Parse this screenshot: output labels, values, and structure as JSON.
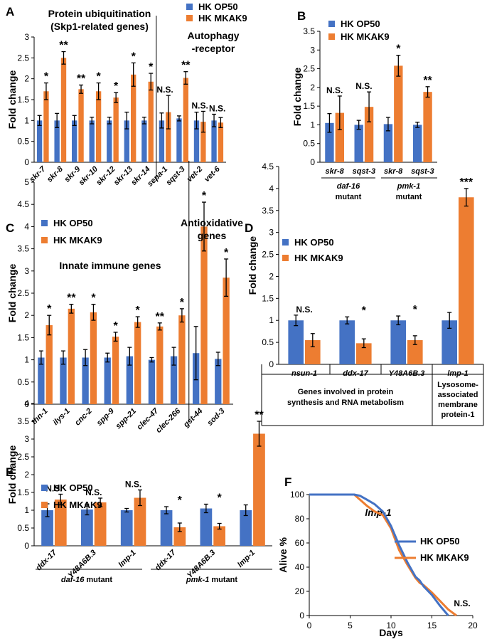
{
  "chart_data": [
    {
      "panel": "A",
      "type": "bar",
      "ylabel": "Fold change",
      "ylim": [
        0,
        3
      ],
      "yticks": [
        0,
        0.5,
        1,
        1.5,
        2,
        2.5,
        3
      ],
      "categories": [
        "skr-7",
        "skr-8",
        "skr-9",
        "skr-10",
        "skr-12",
        "skr-13",
        "skr-14",
        "sepa-1",
        "sqst-3",
        "vet-2",
        "vet-6"
      ],
      "series": [
        {
          "name": "HK OP50",
          "color": "#4472C4",
          "values": [
            1.0,
            1.0,
            1.0,
            1.0,
            1.0,
            1.0,
            1.0,
            1.0,
            1.05,
            1.0,
            1.0
          ],
          "errors": [
            0.12,
            0.17,
            0.12,
            0.08,
            0.08,
            0.2,
            0.08,
            0.18,
            0.06,
            0.2,
            0.15
          ]
        },
        {
          "name": "HK MKAK9",
          "color": "#ED7D31",
          "values": [
            1.7,
            2.5,
            1.75,
            1.7,
            1.55,
            2.1,
            1.93,
            1.2,
            2.02,
            0.97,
            0.95
          ],
          "errors": [
            0.2,
            0.15,
            0.1,
            0.2,
            0.12,
            0.28,
            0.2,
            0.4,
            0.15,
            0.25,
            0.12
          ]
        }
      ],
      "significance": [
        "*",
        "**",
        "**",
        "*",
        "*",
        "*",
        "*",
        "N.S.",
        "**",
        "N.S.",
        "N.S."
      ],
      "annotations": {
        "title_line1": "Protein ubiquitination",
        "title_line2": "(Skp1-related genes)",
        "right_line1": "Autophagy",
        "right_line2": "-receptor"
      }
    },
    {
      "panel": "B",
      "type": "bar",
      "ylabel": "Fold change",
      "ylim": [
        0,
        3.5
      ],
      "yticks": [
        0,
        0.5,
        1,
        1.5,
        2,
        2.5,
        3,
        3.5
      ],
      "categories": [
        "skr-8",
        "sqst-3",
        "skr-8",
        "sqst-3"
      ],
      "series": [
        {
          "name": "HK OP50",
          "color": "#4472C4",
          "values": [
            1.05,
            1.0,
            1.02,
            1.0
          ],
          "errors": [
            0.25,
            0.12,
            0.18,
            0.07
          ]
        },
        {
          "name": "HK MKAK9",
          "color": "#ED7D31",
          "values": [
            1.32,
            1.48,
            2.58,
            1.88
          ],
          "errors": [
            0.45,
            0.4,
            0.28,
            0.14
          ]
        }
      ],
      "significance": [
        "N.S.",
        "N.S.",
        "*",
        "**"
      ],
      "groups": [
        {
          "line1": "daf-16",
          "line2": "mutant"
        },
        {
          "line1": "pmk-1",
          "line2": "mutant"
        }
      ]
    },
    {
      "panel": "C",
      "type": "bar",
      "ylabel": "Fold change",
      "ylim": [
        0,
        5
      ],
      "yticks": [
        0,
        0.5,
        1,
        1.5,
        2,
        2.5,
        3,
        3.5,
        4,
        4.5,
        5
      ],
      "categories": [
        "thn-1",
        "ilys-1",
        "cnc-2",
        "spp-9",
        "spp-21",
        "clec-47",
        "clec-266",
        "gst-44",
        "sod-3"
      ],
      "series": [
        {
          "name": "HK OP50",
          "color": "#4472C4",
          "values": [
            1.05,
            1.05,
            1.05,
            1.05,
            1.08,
            1.0,
            1.08,
            1.15,
            1.02
          ],
          "errors": [
            0.15,
            0.15,
            0.18,
            0.1,
            0.2,
            0.05,
            0.2,
            0.6,
            0.15
          ]
        },
        {
          "name": "HK MKAK9",
          "color": "#ED7D31",
          "values": [
            1.78,
            2.15,
            2.07,
            1.52,
            1.85,
            1.75,
            2.0,
            4.0,
            2.85
          ],
          "errors": [
            0.22,
            0.1,
            0.18,
            0.1,
            0.12,
            0.08,
            0.15,
            0.55,
            0.42
          ]
        }
      ],
      "significance": [
        "*",
        "**",
        "*",
        "*",
        "*",
        "**",
        "*",
        "*",
        "*"
      ],
      "annotations": {
        "innate": "Innate immune genes",
        "antiox_line1": "Antioxidative",
        "antiox_line2": "genes"
      }
    },
    {
      "panel": "D",
      "type": "bar",
      "ylabel": "Fold change",
      "ylim": [
        0,
        4.5
      ],
      "yticks": [
        0,
        0.5,
        1,
        1.5,
        2,
        2.5,
        3,
        3.5,
        4,
        4.5
      ],
      "categories": [
        "nsun-1",
        "ddx-17",
        "Y48A6B.3",
        "lmp-1"
      ],
      "series": [
        {
          "name": "HK OP50",
          "color": "#4472C4",
          "values": [
            1.0,
            1.0,
            1.0,
            1.0
          ],
          "errors": [
            0.12,
            0.08,
            0.1,
            0.18
          ]
        },
        {
          "name": "HK MKAK9",
          "color": "#ED7D31",
          "values": [
            0.55,
            0.48,
            0.55,
            3.8
          ],
          "errors": [
            0.15,
            0.1,
            0.1,
            0.2
          ]
        }
      ],
      "significance": [
        "N.S.",
        "*",
        "*",
        "***"
      ],
      "groups": [
        {
          "line1": "Genes involved in protein",
          "line2": "synthesis and RNA metabolism"
        },
        {
          "line1": "Lysosome-",
          "line2": "associated",
          "line3": "membrane",
          "line4": "protein-1"
        }
      ]
    },
    {
      "panel": "E",
      "type": "bar",
      "ylabel": "Fold change",
      "ylim": [
        0,
        4
      ],
      "yticks": [
        0,
        0.5,
        1,
        1.5,
        2,
        2.5,
        3,
        3.5,
        4
      ],
      "categories": [
        "ddx-17",
        "Y48A6B.3",
        "lmp-1",
        "ddx-17",
        "Y48A6B.3",
        "lmp-1"
      ],
      "series": [
        {
          "name": "HK OP50",
          "color": "#4472C4",
          "values": [
            1.0,
            1.02,
            1.0,
            1.0,
            1.05,
            1.0
          ],
          "errors": [
            0.18,
            0.15,
            0.05,
            0.1,
            0.12,
            0.15
          ]
        },
        {
          "name": "HK MKAK9",
          "color": "#ED7D31",
          "values": [
            1.3,
            1.22,
            1.35,
            0.52,
            0.55,
            3.15
          ],
          "errors": [
            0.15,
            0.12,
            0.22,
            0.12,
            0.08,
            0.35
          ]
        }
      ],
      "significance": [
        "N.S.",
        "N.S.",
        "N.S.",
        "*",
        "*",
        "**"
      ],
      "groups": [
        {
          "gene": "daf-16",
          "suffix": " mutant"
        },
        {
          "gene": "pmk-1",
          "suffix": " mutant"
        }
      ]
    },
    {
      "panel": "F",
      "type": "line",
      "title": "lmp-1",
      "xlabel": "Days",
      "ylabel": "Alive %",
      "xlim": [
        0,
        20
      ],
      "ylim": [
        0,
        100
      ],
      "xticks": [
        0,
        5,
        10,
        15,
        20
      ],
      "yticks": [
        0,
        20,
        40,
        60,
        80,
        100
      ],
      "series": [
        {
          "name": "HK OP50",
          "color": "#4472C4",
          "x": [
            0,
            5.5,
            6.2,
            7,
            8,
            9,
            10,
            11,
            12,
            13,
            13.5,
            14,
            15,
            16,
            17
          ],
          "y": [
            100,
            100,
            99,
            96,
            92,
            86,
            74,
            58,
            44,
            32,
            29,
            24,
            17,
            8,
            0
          ]
        },
        {
          "name": "HK MKAK9",
          "color": "#ED7D31",
          "x": [
            0,
            5.5,
            6,
            7,
            8,
            9,
            10,
            11,
            12,
            13,
            13.5,
            14,
            15,
            16,
            17,
            18
          ],
          "y": [
            100,
            100,
            97,
            91,
            86,
            83,
            72,
            54,
            42,
            31,
            27,
            25,
            19,
            12,
            5,
            0
          ]
        }
      ],
      "annotation": "N.S."
    }
  ],
  "legend": {
    "op50": "HK OP50",
    "mkak9": "HK MKAK9"
  }
}
